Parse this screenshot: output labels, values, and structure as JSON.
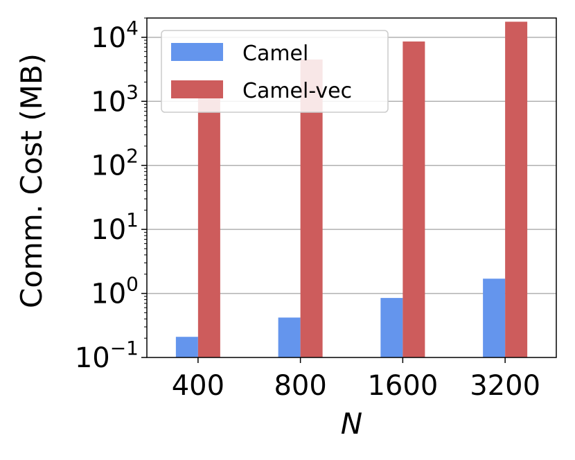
{
  "chart_data": {
    "type": "bar",
    "categories": [
      "400",
      "800",
      "1600",
      "3200"
    ],
    "series": [
      {
        "name": "Camel",
        "color": "#6495ED",
        "values": [
          0.21,
          0.42,
          0.85,
          1.7
        ]
      },
      {
        "name": "Camel-vec",
        "color": "#CD5C5C",
        "values": [
          1150,
          4500,
          8600,
          17500
        ]
      }
    ],
    "xlabel": "N",
    "ylabel": "Comm. Cost (MB)",
    "yscale": "log",
    "ylim": [
      0.1,
      20000
    ],
    "yticks": [
      {
        "base": "10",
        "exp": "−1"
      },
      {
        "base": "10",
        "exp": "0"
      },
      {
        "base": "10",
        "exp": "1"
      },
      {
        "base": "10",
        "exp": "2"
      },
      {
        "base": "10",
        "exp": "3"
      },
      {
        "base": "10",
        "exp": "4"
      }
    ],
    "grid": "horizontal",
    "legend_position": "top-left"
  }
}
